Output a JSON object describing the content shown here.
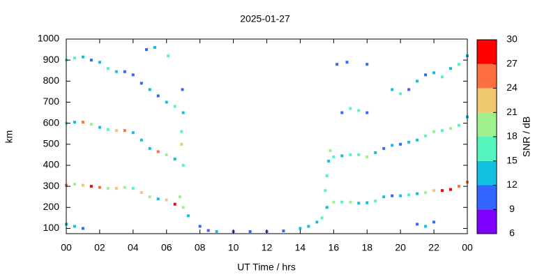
{
  "chart_data": {
    "type": "scatter",
    "title": "2025-01-27",
    "x_label": "UT Time / hrs",
    "y_label": "km",
    "colorbar_label": "SNR / dB",
    "xlim": [
      0,
      24
    ],
    "ylim": [
      75,
      1000
    ],
    "xticks": [
      {
        "value": 0,
        "label": "00"
      },
      {
        "value": 2,
        "label": "02"
      },
      {
        "value": 4,
        "label": "04"
      },
      {
        "value": 6,
        "label": "06"
      },
      {
        "value": 8,
        "label": "08"
      },
      10,
      12,
      14,
      16,
      18,
      20,
      22,
      {
        "value": 24,
        "label": "00"
      }
    ],
    "yticks": [
      100,
      200,
      300,
      400,
      500,
      600,
      700,
      800,
      900,
      1000
    ],
    "clim": [
      6,
      30
    ],
    "cticks": [
      6,
      9,
      12,
      15,
      18,
      21,
      24,
      27,
      30
    ],
    "colors": [
      "#7f00ff",
      "#3366ff",
      "#11c0e0",
      "#55f5c0",
      "#a0f090",
      "#f0c870",
      "#ff7040",
      "#ff0000"
    ],
    "x": [
      0,
      0.5,
      1,
      1.5,
      2,
      2.5,
      3,
      3.5,
      4,
      4.5,
      5,
      5.5,
      6,
      6.5,
      6.8,
      0,
      0.5,
      1,
      1.5,
      2,
      2.5,
      3,
      3.5,
      4,
      4.5,
      5,
      5.5,
      6,
      6.5,
      6.9,
      0,
      0.5,
      1,
      1.5,
      2,
      2.5,
      3,
      3.5,
      4,
      4.5,
      5,
      5.5,
      6,
      6.5,
      6.95,
      7,
      7,
      7,
      6.9,
      0,
      0.5,
      1,
      7.3,
      8,
      8.5,
      9,
      10,
      11,
      12,
      13,
      14,
      14.5,
      15,
      15.3,
      15.6,
      15.5,
      15.6,
      15.7,
      15.8,
      16,
      16.5,
      17,
      17.5,
      18,
      18.5,
      19,
      19.5,
      20,
      20.5,
      21,
      21.5,
      22,
      22.5,
      23,
      23.5,
      24,
      16,
      16.5,
      17,
      17.5,
      18,
      18.5,
      19,
      19.5,
      20,
      20.5,
      21,
      21.5,
      22,
      22.5,
      23,
      23.5,
      24,
      16.5,
      17,
      17.5,
      18,
      19.5,
      20,
      20.5,
      21,
      21.5,
      22,
      22.5,
      23,
      23.5,
      24,
      16.2,
      16.8,
      18,
      21,
      21.5,
      22,
      4.8,
      5.3,
      6.1
    ],
    "y": [
      305,
      310,
      305,
      300,
      295,
      290,
      290,
      295,
      290,
      270,
      250,
      240,
      235,
      215,
      250,
      600,
      605,
      605,
      595,
      580,
      570,
      565,
      565,
      555,
      520,
      480,
      465,
      450,
      430,
      500,
      900,
      910,
      915,
      900,
      890,
      860,
      845,
      845,
      830,
      790,
      760,
      730,
      700,
      680,
      760,
      650,
      400,
      200,
      560,
      120,
      110,
      100,
      160,
      110,
      90,
      85,
      85,
      85,
      85,
      88,
      100,
      110,
      130,
      150,
      200,
      280,
      350,
      420,
      470,
      225,
      225,
      225,
      220,
      222,
      230,
      250,
      255,
      255,
      260,
      265,
      270,
      280,
      280,
      285,
      300,
      320,
      440,
      445,
      450,
      450,
      440,
      460,
      480,
      495,
      500,
      510,
      520,
      540,
      560,
      565,
      575,
      590,
      630,
      650,
      670,
      660,
      650,
      760,
      740,
      760,
      800,
      830,
      840,
      820,
      860,
      880,
      920,
      880,
      890,
      880,
      120,
      110,
      130,
      950,
      960,
      920
    ],
    "values": [
      25,
      20,
      22,
      28,
      24,
      20,
      22,
      18,
      16,
      22,
      19,
      14,
      22,
      28,
      20,
      16,
      14,
      26,
      18,
      14,
      16,
      22,
      24,
      14,
      12,
      14,
      25,
      20,
      13,
      22,
      15,
      16,
      14,
      10,
      12,
      15,
      13,
      11,
      10,
      11,
      12,
      11,
      14,
      15,
      11,
      13,
      16,
      19,
      15,
      12,
      14,
      10,
      14,
      11,
      10,
      12,
      10,
      10,
      10,
      10,
      12,
      14,
      12,
      15,
      14,
      15,
      17,
      12,
      18,
      18,
      17,
      18,
      12,
      14,
      16,
      12,
      11,
      14,
      16,
      12,
      18,
      22,
      27,
      28,
      25,
      26,
      15,
      13,
      16,
      15,
      18,
      12,
      11,
      12,
      11,
      13,
      12,
      16,
      18,
      15,
      19,
      16,
      14,
      11,
      16,
      17,
      11,
      12,
      15,
      11,
      12,
      11,
      13,
      16,
      14,
      15,
      12,
      11,
      11,
      11,
      11,
      12,
      11,
      11,
      12,
      16
    ]
  }
}
